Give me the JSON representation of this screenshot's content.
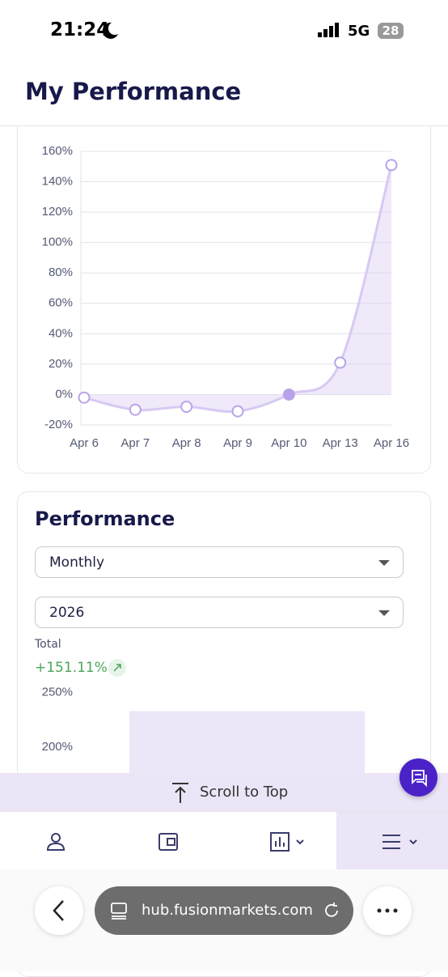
{
  "status_bar": {
    "time": "21:24",
    "network": "5G",
    "battery": "28"
  },
  "header": {
    "title": "My Performance"
  },
  "chart_data": [
    {
      "type": "line",
      "categories": [
        "Apr 6",
        "Apr 7",
        "Apr 8",
        "Apr 9",
        "Apr 10",
        "Apr 13",
        "Apr 16"
      ],
      "values": [
        -2,
        -10,
        -8,
        -11,
        0,
        21,
        151
      ],
      "color": "#d8c9f3",
      "ylim": [
        -20,
        160
      ],
      "yticks": [
        {
          "value": -20,
          "label": "-20%"
        },
        {
          "value": 0,
          "label": "0%"
        },
        {
          "value": 20,
          "label": "20%"
        },
        {
          "value": 40,
          "label": "40%"
        },
        {
          "value": 60,
          "label": "60%"
        },
        {
          "value": 80,
          "label": "80%"
        },
        {
          "value": 100,
          "label": "100%"
        },
        {
          "value": 120,
          "label": "120%"
        },
        {
          "value": 140,
          "label": "140%"
        },
        {
          "value": 160,
          "label": "160%"
        }
      ],
      "grid": true
    },
    {
      "type": "bar",
      "categories": [
        null
      ],
      "values": [
        233
      ],
      "color": "#ece6f8",
      "ylim": [
        176,
        264
      ],
      "yticks": [
        {
          "value": 200,
          "label": "200%"
        },
        {
          "value": 250,
          "label": "250%"
        }
      ],
      "grid": false
    }
  ],
  "performance": {
    "title": "Performance",
    "period": "Monthly",
    "year": "2026",
    "total_label": "Total",
    "total_value": "+151.11%"
  },
  "scroll_button": "Scroll to Top",
  "browser": {
    "url": "hub.fusionmarkets.com"
  }
}
